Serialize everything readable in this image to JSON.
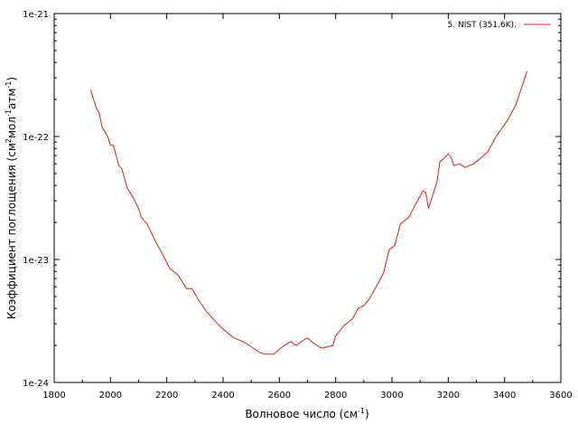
{
  "chart_data": {
    "type": "line",
    "xlabel": "Волновое число (см",
    "xlabel_sup": "-1",
    "xlabel_end": ")",
    "ylabel_parts": [
      {
        "t": "Коэффициент поглощения (см",
        "sup": false
      },
      {
        "t": "2",
        "sup": true
      },
      {
        "t": "мол",
        "sup": false
      },
      {
        "t": "-1",
        "sup": true
      },
      {
        "t": "атм",
        "sup": false
      },
      {
        "t": "-1",
        "sup": true
      },
      {
        "t": ")",
        "sup": false
      }
    ],
    "xlim": [
      1800,
      3600
    ],
    "ylim": [
      1e-24,
      1e-21
    ],
    "yscale": "log",
    "xticks": [
      1800,
      2000,
      2200,
      2400,
      2600,
      2800,
      3000,
      3200,
      3400,
      3600
    ],
    "xtick_labels": [
      "1800",
      "2000",
      "2200",
      "2400",
      "2600",
      "2800",
      "3000",
      "3200",
      "3400",
      "3600"
    ],
    "yticks": [
      1e-24,
      1e-23,
      1e-22,
      1e-21
    ],
    "ytick_labels": [
      "1e-24",
      "1e-23",
      "1e-22",
      "1e-21"
    ],
    "grid": false,
    "legend_position": "top-right",
    "series": [
      {
        "name": "5. NIST (351.6K).",
        "color": "#e31a1c",
        "x": [
          1930,
          1940,
          1950,
          1960,
          1970,
          1990,
          2000,
          2010,
          2030,
          2040,
          2060,
          2080,
          2100,
          2110,
          2130,
          2160,
          2190,
          2210,
          2240,
          2270,
          2290,
          2310,
          2340,
          2380,
          2410,
          2440,
          2460,
          2480,
          2500,
          2530,
          2550,
          2580,
          2610,
          2640,
          2660,
          2690,
          2700,
          2720,
          2750,
          2770,
          2790,
          2800,
          2830,
          2860,
          2880,
          2900,
          2920,
          2940,
          2960,
          2970,
          2990,
          3000,
          3010,
          3030,
          3060,
          3080,
          3110,
          3120,
          3130,
          3160,
          3170,
          3200,
          3210,
          3220,
          3240,
          3260,
          3290,
          3310,
          3340,
          3370,
          3410,
          3440,
          3480
        ],
        "y": [
          2.4e-22,
          2e-22,
          1.7e-22,
          1.55e-22,
          1.2e-22,
          1e-22,
          8.5e-23,
          8.5e-23,
          5.8e-23,
          5.5e-23,
          3.8e-23,
          3.2e-23,
          2.6e-23,
          2.2e-23,
          1.95e-23,
          1.4e-23,
          1.05e-23,
          8.5e-24,
          7.5e-24,
          5.8e-24,
          5.8e-24,
          4.8e-24,
          3.8e-24,
          3e-24,
          2.6e-24,
          2.3e-24,
          2.2e-24,
          2.1e-24,
          1.95e-24,
          1.75e-24,
          1.7e-24,
          1.7e-24,
          1.95e-24,
          2.15e-24,
          2e-24,
          2.25e-24,
          2.3e-24,
          2.1e-24,
          1.9e-24,
          1.95e-24,
          2e-24,
          2.4e-24,
          2.9e-24,
          3.3e-24,
          4e-24,
          4.2e-24,
          4.8e-24,
          5.8e-24,
          7e-24,
          7.8e-24,
          1.2e-23,
          1.25e-23,
          1.3e-23,
          1.95e-23,
          2.2e-23,
          2.7e-23,
          3.6e-23,
          3.5e-23,
          2.6e-23,
          4.3e-23,
          6.2e-23,
          7.2e-23,
          6.8e-23,
          5.8e-23,
          6e-23,
          5.6e-23,
          6e-23,
          6.5e-23,
          7.5e-23,
          1e-22,
          1.35e-22,
          1.8e-22,
          3.4e-22
        ]
      }
    ]
  }
}
